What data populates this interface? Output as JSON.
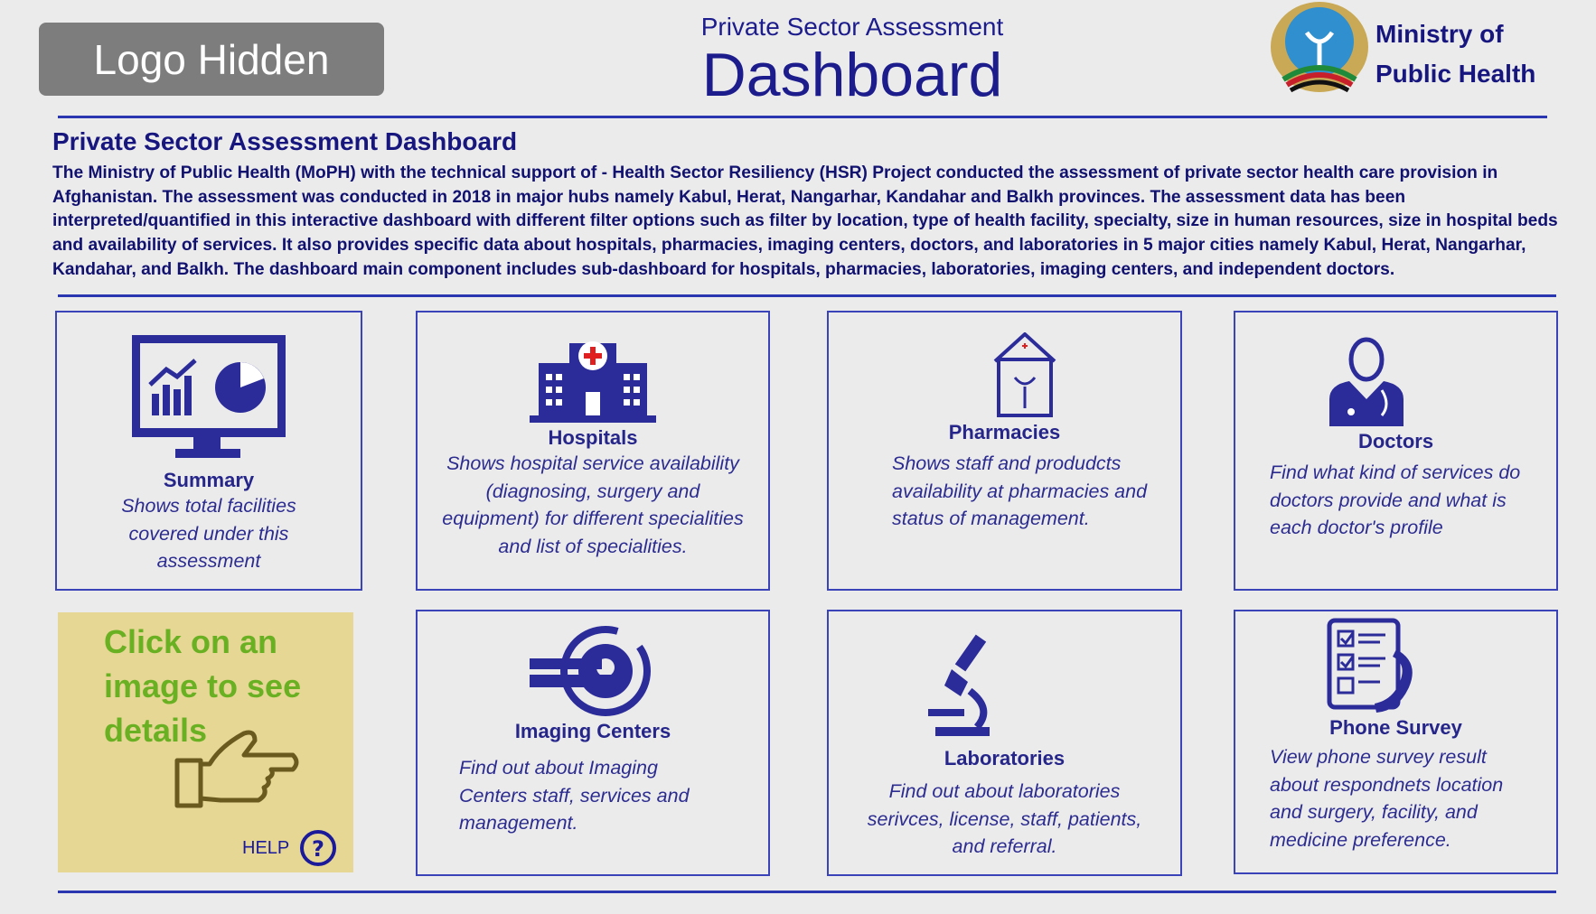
{
  "header": {
    "logo_placeholder": "Logo Hidden",
    "subtitle": "Private Sector Assessment",
    "title": "Dashboard",
    "ministry_line1": "Ministry of",
    "ministry_line2": "Public Health"
  },
  "intro": {
    "title": "Private Sector Assessment Dashboard",
    "text": "The Ministry of Public Health (MoPH) with the technical support of           - Health Sector Resiliency (HSR) Project conducted the assessment of private sector health care provision in Afghanistan. The assessment was conducted in 2018 in major hubs namely Kabul, Herat, Nangarhar, Kandahar and Balkh provinces. The assessment data has been interpreted/quantified in this interactive dashboard with different filter options such as filter by location, type of health facility, specialty, size in human resources, size in hospital beds and availability of services. It also provides specific data about hospitals, pharmacies, imaging centers, doctors, and laboratories in 5 major cities namely Kabul, Herat, Nangarhar, Kandahar, and Balkh. The dashboard main component includes sub-dashboard for hospitals, pharmacies, laboratories, imaging centers, and independent doctors."
  },
  "cards": [
    {
      "title": "Summary",
      "desc": "Shows total facilities covered under this assessment",
      "icon": "monitor-chart-icon"
    },
    {
      "title": "Hospitals",
      "desc": "Shows hospital service availability (diagnosing, surgery and equipment) for different specialities and list of specialities.",
      "icon": "hospital-icon"
    },
    {
      "title": "Pharmacies",
      "desc": "Shows staff and produdcts availability at pharmacies and status of management.",
      "icon": "pharmacy-icon"
    },
    {
      "title": "Doctors",
      "desc": "Find what kind of services do doctors provide and what is each doctor's profile",
      "icon": "doctor-icon"
    },
    {
      "title": "Imaging Centers",
      "desc": "Find out about Imaging Centers staff, services and management.",
      "icon": "imaging-icon"
    },
    {
      "title": "Laboratories",
      "desc": "Find out about laboratories serivces, license,  staff, patients, and referral.",
      "icon": "microscope-icon"
    },
    {
      "title": "Phone Survey",
      "desc": "View phone survey result about respondnets location and surgery, facility, and medicine preference.",
      "icon": "phone-survey-icon"
    }
  ],
  "help": {
    "text": "Click on an image to see details",
    "label": "HELP"
  },
  "colors": {
    "navy": "#16167e",
    "icon": "#2b2b99",
    "help_bg": "#e6d794",
    "help_text": "#6ab023"
  }
}
